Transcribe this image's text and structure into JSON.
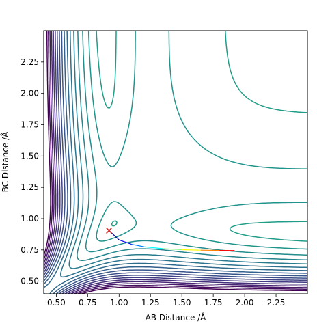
{
  "chart_data": {
    "type": "contour",
    "title": "",
    "xlabel": "AB Distance /Å",
    "ylabel": "BC Distance /Å",
    "xlim": [
      0.4,
      2.5
    ],
    "ylim": [
      0.4,
      2.5
    ],
    "xticks": [
      0.5,
      0.75,
      1.0,
      1.25,
      1.5,
      1.75,
      2.0,
      2.25
    ],
    "xtick_labels": [
      "0.50",
      "0.75",
      "1.00",
      "1.25",
      "1.50",
      "1.75",
      "2.00",
      "2.25"
    ],
    "yticks": [
      0.5,
      0.75,
      1.0,
      1.25,
      1.5,
      1.75,
      2.0,
      2.25
    ],
    "ytick_labels": [
      "0.50",
      "0.75",
      "1.00",
      "1.25",
      "1.50",
      "1.75",
      "2.00",
      "2.25"
    ],
    "grid": false,
    "colormap": "viridis",
    "surface": "LEPS potential energy surface (A + BC)",
    "contour_levels": 30,
    "start_point": {
      "x": 0.92,
      "y": 0.905,
      "marker": "x",
      "color": "#d62728"
    },
    "trajectory": {
      "colormap": "jet",
      "x": [
        0.92,
        1.0,
        1.1,
        1.2,
        1.35,
        1.5,
        1.65,
        1.8,
        1.92
      ],
      "y": [
        0.905,
        0.83,
        0.795,
        0.775,
        0.76,
        0.752,
        0.748,
        0.746,
        0.745
      ]
    }
  },
  "colors": {
    "axis": "#000000",
    "background": "#ffffff",
    "marker": "#d62728"
  }
}
